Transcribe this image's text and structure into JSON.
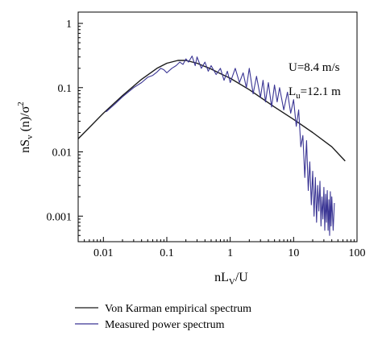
{
  "chart_data": {
    "type": "line",
    "title": "",
    "xscale": "log",
    "yscale": "log",
    "xlim": [
      0.004,
      100
    ],
    "ylim": [
      0.0004,
      1.5
    ],
    "x_ticks": [
      0.01,
      0.1,
      1,
      10,
      100
    ],
    "x_tick_labels": [
      "0.01",
      "0.1",
      "1",
      "10",
      "100"
    ],
    "y_ticks": [
      0.001,
      0.01,
      0.1,
      1
    ],
    "y_tick_labels": [
      "0.001",
      "0.01",
      "0.1",
      "1"
    ],
    "xlabel": {
      "main": "nL",
      "sub": "V",
      "tail": "/U"
    },
    "ylabel": {
      "pre": "nS",
      "sub": "v",
      "mid": " (n)/σ",
      "sup": "2"
    },
    "annotations": [
      {
        "text": "U=8.4 m/s"
      },
      {
        "main": "L",
        "sub": "u",
        "tail": "=12.1 m"
      }
    ],
    "series": [
      {
        "name": "Von Karman empirical spectrum",
        "color": "#1a1a1a",
        "x": [
          0.004,
          0.006,
          0.01,
          0.02,
          0.04,
          0.07,
          0.1,
          0.15,
          0.2,
          0.3,
          0.5,
          0.7,
          1,
          2,
          5,
          10,
          20,
          40,
          65
        ],
        "y": [
          0.016,
          0.024,
          0.04,
          0.075,
          0.135,
          0.2,
          0.24,
          0.265,
          0.265,
          0.24,
          0.195,
          0.165,
          0.14,
          0.093,
          0.05,
          0.032,
          0.02,
          0.012,
          0.0072
        ]
      },
      {
        "name": "Measured power spectrum",
        "color": "#3a3594",
        "x": [
          0.011,
          0.015,
          0.02,
          0.03,
          0.04,
          0.05,
          0.06,
          0.07,
          0.08,
          0.09,
          0.1,
          0.12,
          0.14,
          0.16,
          0.18,
          0.2,
          0.22,
          0.25,
          0.28,
          0.3,
          0.35,
          0.4,
          0.45,
          0.5,
          0.6,
          0.7,
          0.8,
          0.9,
          1.0,
          1.2,
          1.4,
          1.6,
          1.8,
          2.0,
          2.3,
          2.6,
          3.0,
          3.3,
          3.6,
          4.0,
          4.5,
          5.0,
          5.5,
          6.0,
          7.0,
          8.0,
          9.0,
          10.0,
          11.0,
          12.0,
          13.0,
          14.0,
          15.0,
          16.0,
          17.0,
          18.0,
          19.0,
          20.0,
          21.0,
          22.0,
          23.0,
          24.0,
          25.0,
          26.0,
          27.0,
          28.0,
          29.0,
          30.0,
          31.0,
          32.0,
          33.0,
          34.0,
          35.0,
          36.0,
          37.0,
          38.0,
          39.0,
          40.0,
          42.0,
          44.0
        ],
        "y": [
          0.042,
          0.055,
          0.072,
          0.1,
          0.12,
          0.145,
          0.155,
          0.175,
          0.2,
          0.19,
          0.17,
          0.2,
          0.22,
          0.25,
          0.23,
          0.28,
          0.25,
          0.31,
          0.22,
          0.3,
          0.2,
          0.25,
          0.18,
          0.22,
          0.16,
          0.2,
          0.13,
          0.18,
          0.12,
          0.2,
          0.12,
          0.17,
          0.1,
          0.2,
          0.08,
          0.15,
          0.07,
          0.13,
          0.06,
          0.12,
          0.05,
          0.11,
          0.06,
          0.1,
          0.045,
          0.085,
          0.04,
          0.065,
          0.025,
          0.045,
          0.012,
          0.018,
          0.004,
          0.015,
          0.0025,
          0.007,
          0.0015,
          0.005,
          0.001,
          0.004,
          0.0008,
          0.003,
          0.0012,
          0.0035,
          0.0007,
          0.002,
          0.0009,
          0.0028,
          0.0006,
          0.0022,
          0.0008,
          0.0025,
          0.0006,
          0.0018,
          0.0005,
          0.0024,
          0.0007,
          0.002,
          0.0006,
          0.0016
        ]
      }
    ],
    "grid": false,
    "legend": {
      "position": "bottom-left"
    }
  }
}
